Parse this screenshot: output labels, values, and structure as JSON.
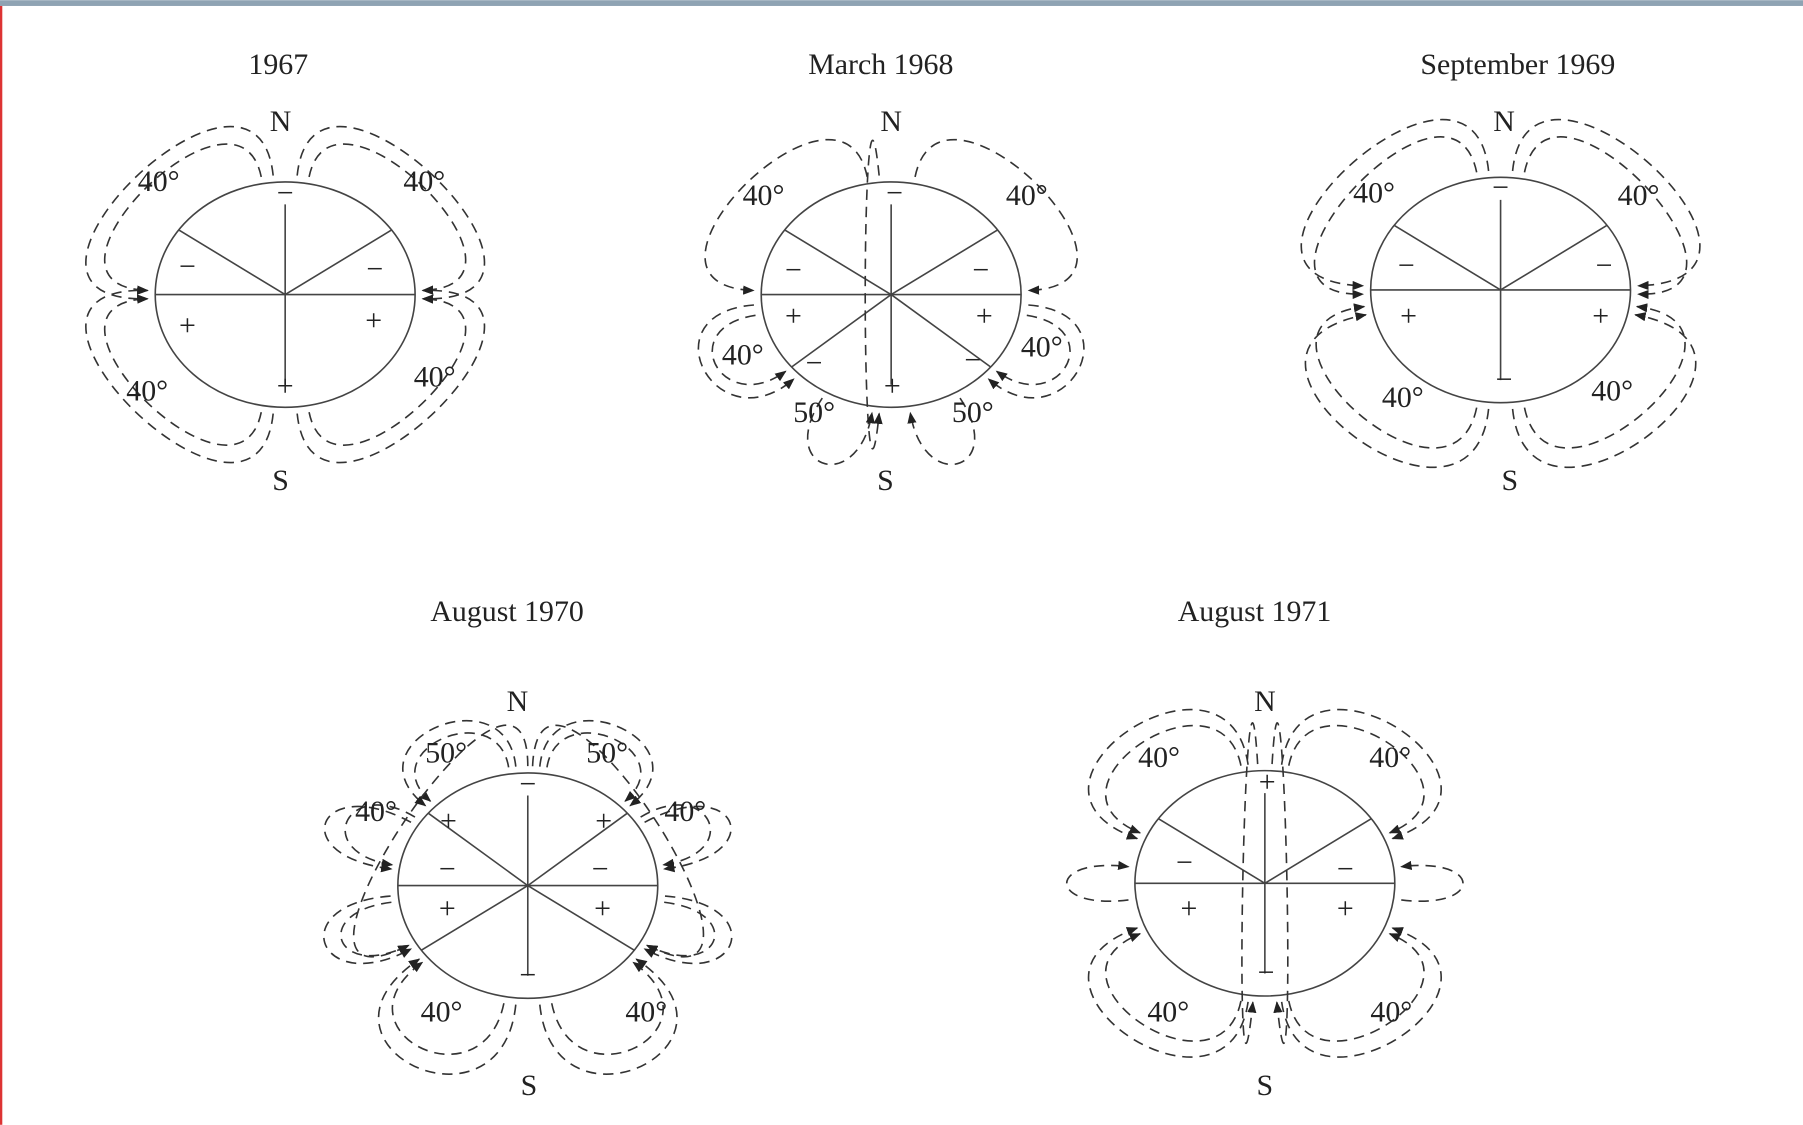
{
  "diagrams": [
    {
      "title": "1967",
      "north": "N",
      "south": "S",
      "signs": [
        "−",
        "−",
        "−",
        "+",
        "+",
        "+"
      ],
      "angles": [
        "40°",
        "40°",
        "40°",
        "40°"
      ]
    },
    {
      "title": "March 1968",
      "north": "N",
      "south": "S",
      "signs": [
        "−",
        "−",
        "−",
        "+",
        "+",
        "−",
        "−",
        "+"
      ],
      "angles": [
        "40°",
        "40°",
        "40°",
        "40°",
        "50°",
        "50°"
      ]
    },
    {
      "title": "September 1969",
      "north": "N",
      "south": "S",
      "signs": [
        "−",
        "−",
        "−",
        "+",
        "+",
        "−"
      ],
      "angles": [
        "40°",
        "40°",
        "40°",
        "40°"
      ]
    },
    {
      "title": "August 1970",
      "north": "N",
      "south": "S",
      "signs": [
        "−",
        "+",
        "+",
        "−",
        "−",
        "+",
        "+",
        "−"
      ],
      "angles": [
        "50°",
        "50°",
        "40°",
        "40°",
        "40°",
        "40°"
      ]
    },
    {
      "title": "August 1971",
      "north": "N",
      "south": "S",
      "signs": [
        "+",
        "−",
        "−",
        "+",
        "+",
        "−"
      ],
      "angles": [
        "40°",
        "40°",
        "40°",
        "40°"
      ]
    }
  ]
}
